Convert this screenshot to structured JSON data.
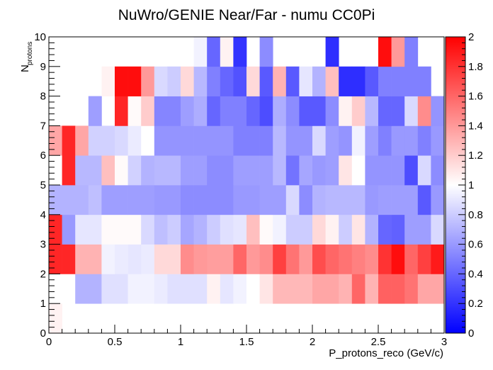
{
  "chart_data": {
    "type": "heatmap",
    "title": "NuWro/GENIE Near/Far - numu CC0Pi",
    "xlabel": "P_protons_reco (GeV/c)",
    "ylabel_main": "N",
    "ylabel_sub": "protons",
    "xlim": [
      0,
      3
    ],
    "ylim": [
      0,
      10
    ],
    "zlim": [
      0,
      2
    ],
    "x_ticks": [
      "0",
      "0.5",
      "1",
      "1.5",
      "2",
      "2.5",
      "3"
    ],
    "y_ticks": [
      "0",
      "1",
      "2",
      "3",
      "4",
      "5",
      "6",
      "7",
      "8",
      "9",
      "10"
    ],
    "z_ticks": [
      "0",
      "0.2",
      "0.4",
      "0.6",
      "0.8",
      "1",
      "1.2",
      "1.4",
      "1.6",
      "1.8",
      "2"
    ],
    "x_bins": 30,
    "y_bins": 10,
    "colorscale": [
      "#0000ff",
      "#ffffff",
      "#ff0000"
    ],
    "values": [
      [
        1.05,
        null,
        null,
        null,
        null,
        null,
        null,
        null,
        null,
        null,
        null,
        null,
        null,
        null,
        null,
        null,
        null,
        null,
        null,
        null,
        null,
        null,
        null,
        null,
        null,
        null,
        null,
        null,
        null,
        null
      ],
      [
        null,
        null,
        0.7,
        0.7,
        0.88,
        0.88,
        0.95,
        0.95,
        0.92,
        0.88,
        0.88,
        0.88,
        1.05,
        0.9,
        0.95,
        1.0,
        1.1,
        1.28,
        1.28,
        1.28,
        1.35,
        1.35,
        1.3,
        1.6,
        1.3,
        1.62,
        1.62,
        1.55,
        1.35,
        1.35
      ],
      [
        1.85,
        1.85,
        1.3,
        1.3,
        0.95,
        0.92,
        0.9,
        0.92,
        1.15,
        1.15,
        1.45,
        1.4,
        1.38,
        1.38,
        1.6,
        1.4,
        1.45,
        1.75,
        1.55,
        1.4,
        1.7,
        1.6,
        1.55,
        1.5,
        1.45,
        1.8,
        1.95,
        1.6,
        1.75,
        1.9
      ],
      [
        1.85,
        0.6,
        0.9,
        0.9,
        1.02,
        1.02,
        1.02,
        0.85,
        0.75,
        0.8,
        0.65,
        0.7,
        0.8,
        0.88,
        0.9,
        1.25,
        1.02,
        0.95,
        0.8,
        0.8,
        1.15,
        1.05,
        0.8,
        1.1,
        0.7,
        0.4,
        0.38,
        0.62,
        0.62,
        0.85
      ],
      [
        0.7,
        0.7,
        0.7,
        0.75,
        0.62,
        0.62,
        0.62,
        0.62,
        0.6,
        0.6,
        0.55,
        0.55,
        0.55,
        0.55,
        0.6,
        0.6,
        0.62,
        0.62,
        0.85,
        0.55,
        0.7,
        0.72,
        0.72,
        0.72,
        0.6,
        0.62,
        0.62,
        0.62,
        0.35,
        0.6
      ],
      [
        null,
        1.85,
        0.72,
        0.72,
        1.25,
        1.02,
        0.82,
        0.7,
        0.72,
        0.72,
        0.62,
        0.62,
        0.55,
        0.55,
        0.62,
        0.62,
        0.62,
        0.72,
        0.45,
        0.65,
        0.6,
        0.62,
        1.1,
        1.0,
        0.58,
        0.58,
        0.58,
        0.3,
        0.85,
        0.55
      ],
      [
        1.35,
        1.85,
        1.35,
        0.82,
        0.82,
        0.85,
        0.92,
        1.0,
        0.58,
        0.58,
        0.58,
        0.58,
        0.58,
        0.58,
        0.5,
        0.5,
        0.5,
        0.72,
        0.58,
        0.58,
        0.85,
        0.62,
        0.58,
        0.95,
        0.62,
        0.5,
        0.6,
        0.6,
        0.5,
        0.6
      ],
      [
        null,
        null,
        null,
        0.62,
        null,
        1.85,
        1.02,
        1.2,
        0.52,
        0.52,
        0.62,
        0.68,
        0.4,
        0.5,
        0.5,
        0.4,
        0.3,
        0.68,
        0.55,
        0.35,
        0.35,
        0.55,
        1.05,
        1.2,
        0.72,
        0.4,
        0.4,
        0.85,
        1.45,
        0.58
      ],
      [
        null,
        null,
        null,
        null,
        1.05,
        1.95,
        1.95,
        1.4,
        0.85,
        0.8,
        1.15,
        0.72,
        0.5,
        0.4,
        0.32,
        1.15,
        0.35,
        1.3,
        0.35,
        0.9,
        0.7,
        1.25,
        0.18,
        0.18,
        0.35,
        0.5,
        0.5,
        0.5,
        0.5,
        null
      ],
      [
        null,
        null,
        null,
        null,
        null,
        null,
        null,
        null,
        null,
        null,
        null,
        0.95,
        0.4,
        1.05,
        0.2,
        null,
        0.55,
        null,
        null,
        null,
        null,
        0.18,
        null,
        null,
        null,
        1.95,
        1.4,
        0.5,
        null,
        null
      ]
    ]
  }
}
